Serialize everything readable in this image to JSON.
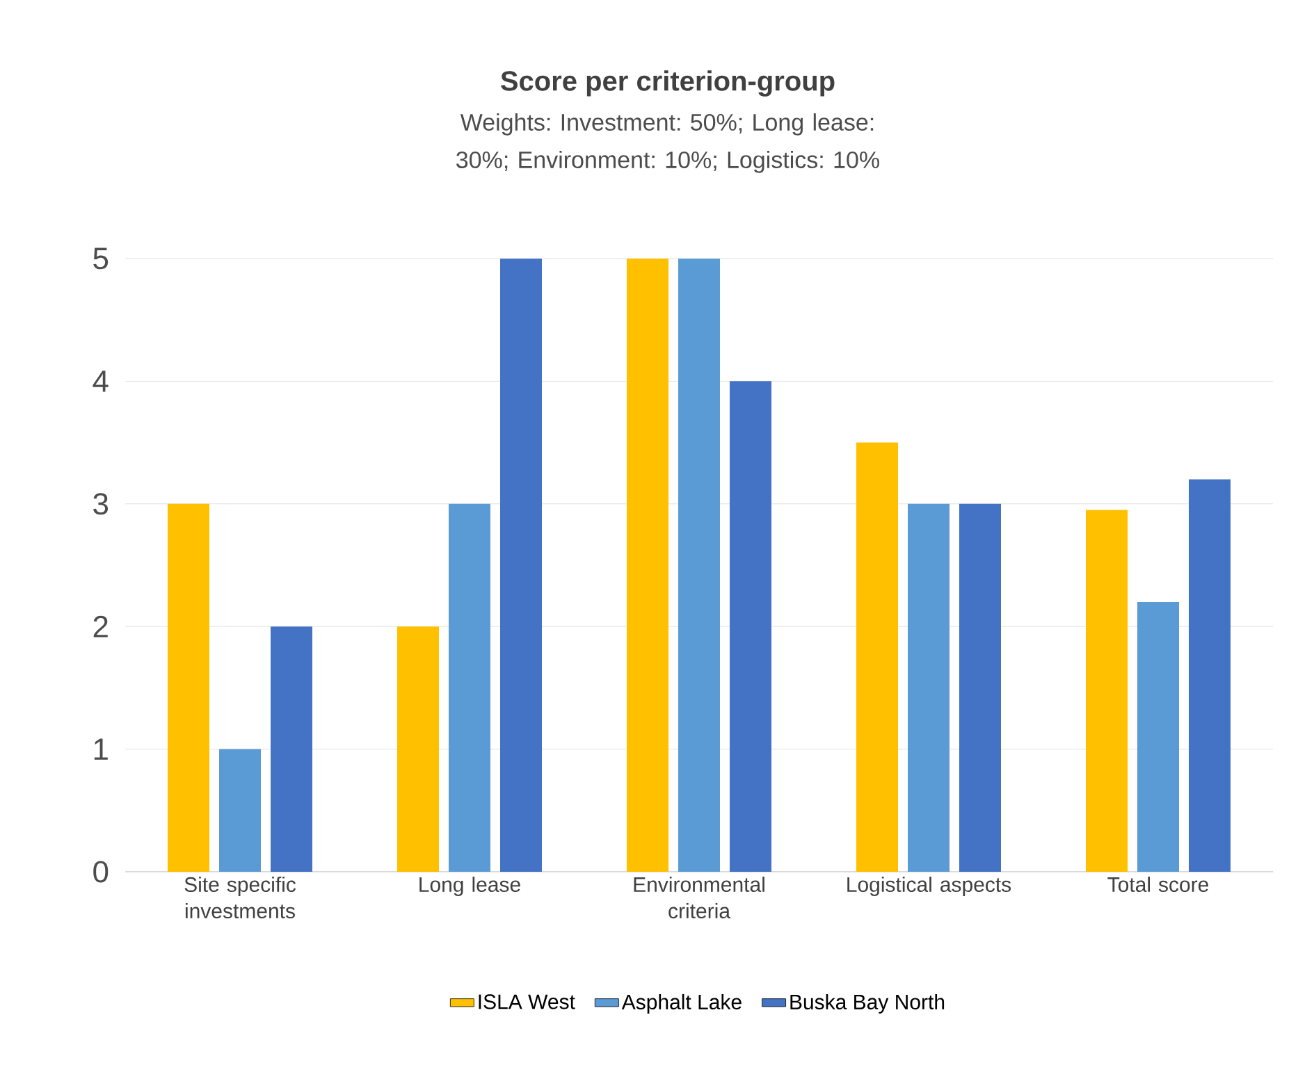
{
  "chart_data": {
    "type": "bar",
    "title": "Score per criterion-group",
    "subtitle": "Weights: Investment: 50%; Long lease: 30%; Environment: 10%; Logistics: 10%",
    "categories": [
      "Site specific investments",
      "Long lease",
      "Environmental criteria",
      "Logistical aspects",
      "Total score"
    ],
    "series": [
      {
        "name": "ISLA West",
        "color": "#ffc000",
        "values": [
          3,
          2,
          5,
          3.5,
          2.95
        ]
      },
      {
        "name": "Asphalt Lake",
        "color": "#5b9bd5",
        "values": [
          1,
          3,
          5,
          3,
          2.2
        ]
      },
      {
        "name": "Buska Bay North",
        "color": "#4472c4",
        "values": [
          2,
          5,
          4,
          3,
          3.2
        ]
      }
    ],
    "ylim": [
      0,
      5
    ],
    "yticks": [
      0,
      1,
      2,
      3,
      4,
      5
    ],
    "grid": "y",
    "legend": "bottom"
  }
}
